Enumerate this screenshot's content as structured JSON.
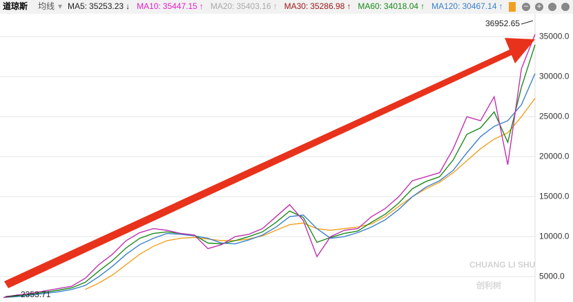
{
  "header": {
    "title": "道琼斯",
    "mode": "均线"
  },
  "chart_data": {
    "type": "line",
    "indicators": [
      {
        "label": "MA5:",
        "value": 35253.23,
        "arrow": "↓",
        "color": "#222222"
      },
      {
        "label": "MA10:",
        "value": 35447.15,
        "arrow": "↑",
        "color": "#e020c8"
      },
      {
        "label": "MA20:",
        "value": 35403.16,
        "arrow": "↑",
        "color": "#aaaaaa"
      },
      {
        "label": "MA30:",
        "value": 35286.98,
        "arrow": "↑",
        "color": "#a01818"
      },
      {
        "label": "MA60:",
        "value": 34018.04,
        "arrow": "↑",
        "color": "#1a8a1a"
      },
      {
        "label": "MA120:",
        "value": 30467.14,
        "arrow": "↑",
        "color": "#3a80c8"
      }
    ],
    "series": [
      {
        "color": "#f0a020",
        "values": [
          null,
          null,
          null,
          null,
          null,
          null,
          3400,
          4200,
          5200,
          6500,
          7800,
          8800,
          9500,
          9800,
          9900,
          9700,
          9500,
          9500,
          9700,
          10100,
          10800,
          11500,
          11700,
          11000,
          10800,
          11000,
          11200,
          11600,
          12500,
          13800,
          15000,
          16000,
          16800,
          18000,
          19500,
          21000,
          22200,
          23000,
          25000,
          27300
        ]
      },
      {
        "color": "#3a80c8",
        "values": [
          2400,
          2500,
          2700,
          2900,
          3100,
          3400,
          3900,
          5000,
          6300,
          7800,
          9000,
          9800,
          10400,
          10300,
          10100,
          9800,
          9200,
          9100,
          9600,
          10200,
          11200,
          12500,
          12700,
          11000,
          9800,
          10000,
          10500,
          11200,
          12100,
          13400,
          15000,
          16200,
          17000,
          18300,
          20500,
          22500,
          23800,
          24500,
          26500,
          30400
        ]
      },
      {
        "color": "#1a8a1a",
        "values": [
          2400,
          2600,
          2800,
          3050,
          3300,
          3600,
          4300,
          5700,
          7000,
          8600,
          9800,
          10400,
          10600,
          10400,
          10200,
          9200,
          9100,
          9500,
          10000,
          10600,
          11800,
          13200,
          12400,
          9300,
          9900,
          10400,
          10700,
          11800,
          12800,
          14200,
          16000,
          16900,
          17500,
          19600,
          22800,
          23600,
          25600,
          21800,
          28700,
          34000
        ]
      },
      {
        "color": "#c030b0",
        "values": [
          2400,
          2700,
          2900,
          3200,
          3500,
          3800,
          4800,
          6500,
          7800,
          9500,
          10500,
          11000,
          10800,
          10400,
          10200,
          8500,
          9000,
          10000,
          10300,
          11000,
          12500,
          14000,
          12000,
          7500,
          10000,
          10800,
          11000,
          12500,
          13500,
          15000,
          17000,
          17500,
          18000,
          21000,
          25000,
          24500,
          27500,
          19000,
          31000,
          35300
        ]
      }
    ],
    "ylim": [
      1830,
      37870
    ],
    "yticks": [
      {
        "value": 5000,
        "label": "5000.0"
      },
      {
        "value": 10000,
        "label": "10000.0"
      },
      {
        "value": 15000,
        "label": "15000.0"
      },
      {
        "value": 20000,
        "label": "20000.0"
      },
      {
        "value": 25000,
        "label": "25000.0"
      },
      {
        "value": 30000,
        "label": "30000.0"
      },
      {
        "value": 35000,
        "label": "35000.0"
      }
    ],
    "grid": true,
    "annotations": [
      {
        "text": "36952.65"
      },
      {
        "text": "2353.71"
      }
    ]
  },
  "watermark": {
    "latin": "CHUANG LI SHU",
    "chinese": "创利树"
  }
}
